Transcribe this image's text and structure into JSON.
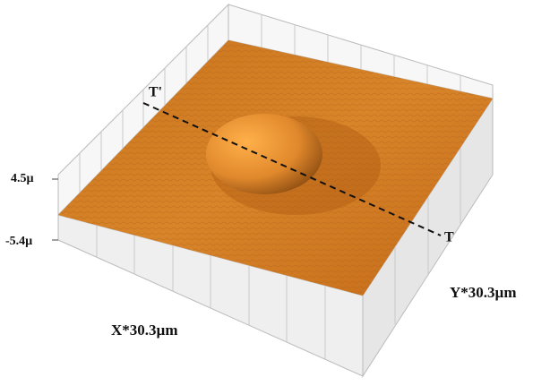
{
  "labels": {
    "z_max": "4.5µ",
    "z_min": "-5.4µ",
    "x_axis": "X*30.3µm",
    "y_axis": "Y*30.3µm",
    "section_start": "T'",
    "section_end": "T"
  }
}
